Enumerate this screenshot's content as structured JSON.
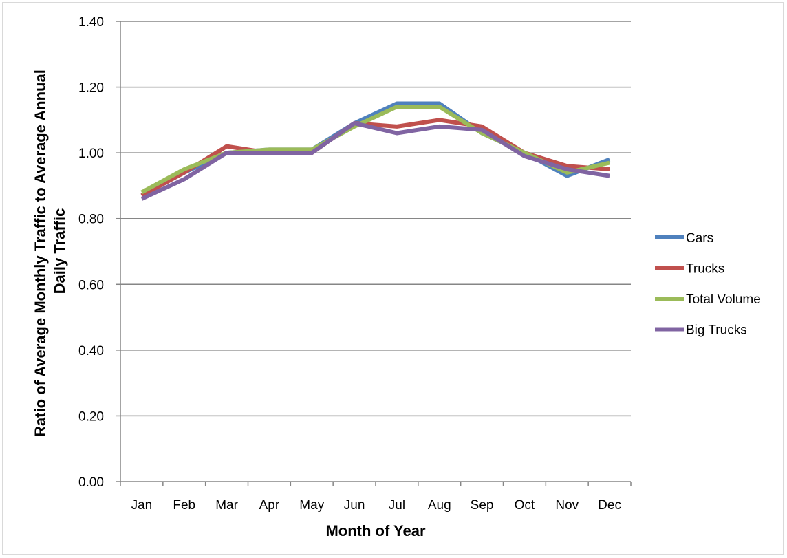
{
  "chart_data": {
    "type": "line",
    "categories": [
      "Jan",
      "Feb",
      "Mar",
      "Apr",
      "May",
      "Jun",
      "Jul",
      "Aug",
      "Sep",
      "Oct",
      "Nov",
      "Dec"
    ],
    "series": [
      {
        "name": "Cars",
        "color": "#4f81bd",
        "values": [
          0.87,
          0.94,
          1.0,
          1.01,
          1.01,
          1.09,
          1.15,
          1.15,
          1.06,
          1.0,
          0.93,
          0.98
        ]
      },
      {
        "name": "Trucks",
        "color": "#c0504d",
        "values": [
          0.87,
          0.94,
          1.02,
          1.0,
          1.0,
          1.09,
          1.08,
          1.1,
          1.08,
          1.0,
          0.96,
          0.95
        ]
      },
      {
        "name": "Total Volume",
        "color": "#9bbb59",
        "values": [
          0.88,
          0.95,
          1.0,
          1.01,
          1.01,
          1.08,
          1.14,
          1.14,
          1.06,
          1.0,
          0.94,
          0.97
        ]
      },
      {
        "name": "Big Trucks",
        "color": "#8064a2",
        "values": [
          0.86,
          0.92,
          1.0,
          1.0,
          1.0,
          1.09,
          1.06,
          1.08,
          1.07,
          0.99,
          0.95,
          0.93
        ]
      }
    ],
    "xlabel": "Month of Year",
    "ylabel_lines": [
      "Ratio of Average Monthly Traffic to Average Annual",
      "Daily Traffic"
    ],
    "ylim": [
      0,
      1.4
    ],
    "y_ticks": [
      "0.00",
      "0.20",
      "0.40",
      "0.60",
      "0.80",
      "1.00",
      "1.20",
      "1.40"
    ],
    "grid": "horizontal",
    "legend_position": "right"
  }
}
